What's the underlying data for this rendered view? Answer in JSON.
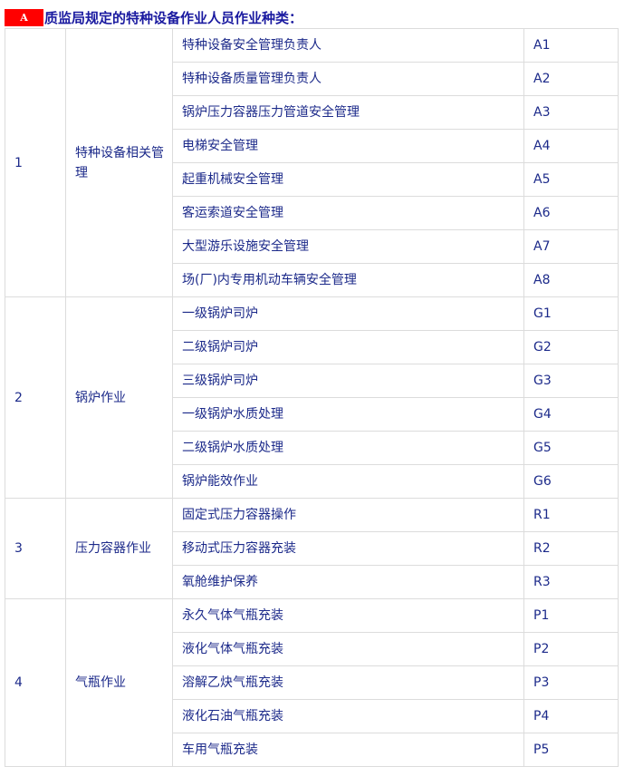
{
  "title": {
    "badge": "A",
    "text": "质监局规定的特种设备作业人员作业种类："
  },
  "groups": [
    {
      "no": "1",
      "name": "特种设备相关管理",
      "items": [
        {
          "name": "特种设备安全管理负责人",
          "code": "A1"
        },
        {
          "name": "特种设备质量管理负责人",
          "code": "A2"
        },
        {
          "name": "锅炉压力容器压力管道安全管理",
          "code": "A3"
        },
        {
          "name": "电梯安全管理",
          "code": "A4"
        },
        {
          "name": "起重机械安全管理",
          "code": "A5"
        },
        {
          "name": "客运索道安全管理",
          "code": "A6"
        },
        {
          "name": "大型游乐设施安全管理",
          "code": "A7"
        },
        {
          "name": "场(厂)内专用机动车辆安全管理",
          "code": "A8"
        }
      ]
    },
    {
      "no": "2",
      "name": "锅炉作业",
      "items": [
        {
          "name": "一级锅炉司炉",
          "code": "G1"
        },
        {
          "name": "二级锅炉司炉",
          "code": "G2"
        },
        {
          "name": "三级锅炉司炉",
          "code": "G3"
        },
        {
          "name": "一级锅炉水质处理",
          "code": "G4"
        },
        {
          "name": "二级锅炉水质处理",
          "code": "G5"
        },
        {
          "name": "锅炉能效作业",
          "code": "G6"
        }
      ]
    },
    {
      "no": "3",
      "name": "压力容器作业",
      "items": [
        {
          "name": "固定式压力容器操作",
          "code": "R1"
        },
        {
          "name": "移动式压力容器充装",
          "code": "R2"
        },
        {
          "name": "氧舱维护保养",
          "code": "R3"
        }
      ]
    },
    {
      "no": "4",
      "name": "气瓶作业",
      "items": [
        {
          "name": "永久气体气瓶充装",
          "code": "P1"
        },
        {
          "name": "液化气体气瓶充装",
          "code": "P2"
        },
        {
          "name": "溶解乙炔气瓶充装",
          "code": "P3"
        },
        {
          "name": "液化石油气瓶充装",
          "code": "P4"
        },
        {
          "name": "车用气瓶充装",
          "code": "P5"
        }
      ]
    }
  ]
}
